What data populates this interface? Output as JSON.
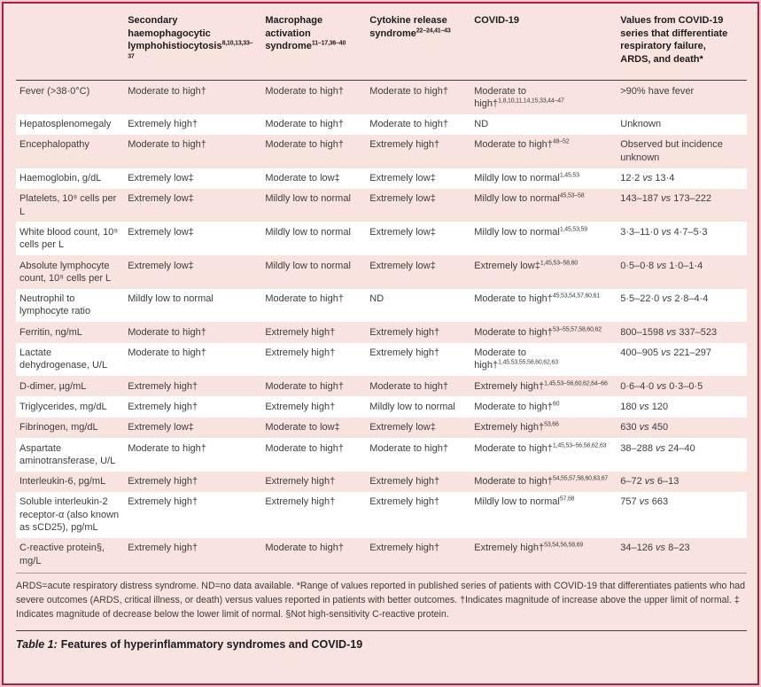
{
  "colors": {
    "frame": "#a82045",
    "card_background": "#f8e3de",
    "band_white": "#ffffff",
    "band_pink": "#f8e3de"
  },
  "table": {
    "columns": [
      {
        "label": "",
        "sup": ""
      },
      {
        "label": "Secondary haemophagocytic lymphohistiocytosis",
        "sup": "8,10,13,33–37"
      },
      {
        "label": "Macrophage activation syndrome",
        "sup": "11–17,36–40"
      },
      {
        "label": "Cytokine release syndrome",
        "sup": "22–24,41–43"
      },
      {
        "label": "COVID-19",
        "sup": ""
      },
      {
        "label": "Values from COVID-19 series that differentiate respiratory failure, ARDS, and death*",
        "sup": ""
      }
    ],
    "rows": [
      {
        "label": "Fever (>38·0°C)",
        "cells": [
          {
            "text": "Moderate to high†"
          },
          {
            "text": "Moderate to high†"
          },
          {
            "text": "Moderate to high†"
          },
          {
            "text": "Moderate to high†",
            "sup": "1,8,10,11,14,15,33,44–47"
          }
        ],
        "value": ">90% have fever"
      },
      {
        "label": "Hepatosplenomegaly",
        "cells": [
          {
            "text": "Extremely high†"
          },
          {
            "text": "Moderate to high†"
          },
          {
            "text": "Moderate to high†"
          },
          {
            "text": "ND"
          }
        ],
        "value": "Unknown"
      },
      {
        "label": "Encephalopathy",
        "cells": [
          {
            "text": "Moderate to high†"
          },
          {
            "text": "Moderate to high†"
          },
          {
            "text": "Extremely high†"
          },
          {
            "text": "Moderate to high†",
            "sup": "48–52"
          }
        ],
        "value": "Observed but incidence unknown"
      },
      {
        "label": "Haemoglobin, g/dL",
        "cells": [
          {
            "text": "Extremely low‡"
          },
          {
            "text": "Moderate to low‡"
          },
          {
            "text": "Extremely low‡"
          },
          {
            "text": "Mildly low to normal",
            "sup": "1,45,53"
          }
        ],
        "value": "12·2 vs 13·4"
      },
      {
        "label": "Platelets, 10⁹ cells per L",
        "cells": [
          {
            "text": "Extremely low‡"
          },
          {
            "text": "Mildly low to normal"
          },
          {
            "text": "Extremely low‡"
          },
          {
            "text": "Mildly low to normal",
            "sup": "45,53–58"
          }
        ],
        "value": "143–187 vs 173–222"
      },
      {
        "label": "White blood count, 10⁹ cells per L",
        "cells": [
          {
            "text": "Extremely low‡"
          },
          {
            "text": "Mildly low to normal"
          },
          {
            "text": "Extremely low‡"
          },
          {
            "text": "Mildly low to normal",
            "sup": "1,45,53,59"
          }
        ],
        "value": "3·3–11·0 vs 4·7–5·3"
      },
      {
        "label": "Absolute lymphocyte count, 10⁹ cells per L",
        "cells": [
          {
            "text": "Extremely low‡"
          },
          {
            "text": "Mildly low to normal"
          },
          {
            "text": "Extremely low‡"
          },
          {
            "text": "Extremely low‡",
            "sup": "1,45,53–58,60"
          }
        ],
        "value": "0·5–0·8 vs 1·0–1·4"
      },
      {
        "label": "Neutrophil to lymphocyte ratio",
        "cells": [
          {
            "text": "Mildly low to normal"
          },
          {
            "text": "Moderate to high†"
          },
          {
            "text": "ND"
          },
          {
            "text": "Moderate to high†",
            "sup": "45,53,54,57,60,61"
          }
        ],
        "value": "5·5–22·0 vs 2·8–4·4"
      },
      {
        "label": "Ferritin, ng/mL",
        "cells": [
          {
            "text": "Moderate to high†"
          },
          {
            "text": "Extremely high†"
          },
          {
            "text": "Extremely high†"
          },
          {
            "text": "Moderate to high†",
            "sup": "53–55,57,58,60,62"
          }
        ],
        "value": "800–1598 vs 337–523"
      },
      {
        "label": "Lactate dehydrogenase, U/L",
        "cells": [
          {
            "text": "Moderate to high†"
          },
          {
            "text": "Extremely high†"
          },
          {
            "text": "Extremely high†"
          },
          {
            "text": "Moderate to high†",
            "sup": "1,45,53,55,58,60,62,63"
          }
        ],
        "value": "400–905 vs 221–297"
      },
      {
        "label": "D-dimer, µg/mL",
        "cells": [
          {
            "text": "Extremely high†"
          },
          {
            "text": "Moderate to high†"
          },
          {
            "text": "Moderate to high†"
          },
          {
            "text": "Extremely high†",
            "sup": "1,45,53–56,60,62,64–66"
          }
        ],
        "value": "0·6–4·0 vs 0·3–0·5"
      },
      {
        "label": "Triglycerides, mg/dL",
        "cells": [
          {
            "text": "Extremely high†"
          },
          {
            "text": "Extremely high†"
          },
          {
            "text": "Mildly low to normal"
          },
          {
            "text": "Moderate to high†",
            "sup": "60"
          }
        ],
        "value": "180 vs 120"
      },
      {
        "label": "Fibrinogen, mg/dL",
        "cells": [
          {
            "text": "Extremely low‡"
          },
          {
            "text": "Moderate to low‡"
          },
          {
            "text": "Extremely low‡"
          },
          {
            "text": "Extremely high†",
            "sup": "53,66"
          }
        ],
        "value": "630 vs 450"
      },
      {
        "label": "Aspartate aminotransferase, U/L",
        "cells": [
          {
            "text": "Moderate to high†"
          },
          {
            "text": "Moderate to high†"
          },
          {
            "text": "Moderate to high†"
          },
          {
            "text": "Moderate to high†",
            "sup": "1,45,53–56,58,62,63"
          }
        ],
        "value": "38–288 vs 24–40"
      },
      {
        "label": "Interleukin-6, pg/mL",
        "cells": [
          {
            "text": "Extremely high†"
          },
          {
            "text": "Extremely high†"
          },
          {
            "text": "Extremely high†"
          },
          {
            "text": "Moderate to high†",
            "sup": "54,55,57,58,60,63,67"
          }
        ],
        "value": "6–72 vs 6–13"
      },
      {
        "label": "Soluble interleukin-2 receptor-α (also known as sCD25), pg/mL",
        "cells": [
          {
            "text": "Extremely high†"
          },
          {
            "text": "Extremely high†"
          },
          {
            "text": "Extremely high†"
          },
          {
            "text": "Mildly low to normal",
            "sup": "57,68"
          }
        ],
        "value": "757 vs 663"
      },
      {
        "label": "C-reactive protein§, mg/L",
        "cells": [
          {
            "text": "Extremely high†"
          },
          {
            "text": "Moderate to high†"
          },
          {
            "text": "Extremely high†"
          },
          {
            "text": "Extremely high†",
            "sup": "53,54,56,58,69"
          }
        ],
        "value": "34–126 vs 8–23"
      }
    ]
  },
  "footnote": "ARDS=acute respiratory distress syndrome. ND=no data available. *Range of values reported in published series of patients with COVID-19 that differentiates patients who had severe outcomes (ARDS, critical illness, or death) versus values reported in patients with better outcomes. †Indicates magnitude of increase above the upper limit of normal. ‡ Indicates magnitude of decrease below the lower limit of normal. §Not high-sensitivity C-reactive protein.",
  "caption": {
    "prefix": "Table 1:",
    "title": "Features of hyperinflammatory syndromes and COVID-19"
  }
}
